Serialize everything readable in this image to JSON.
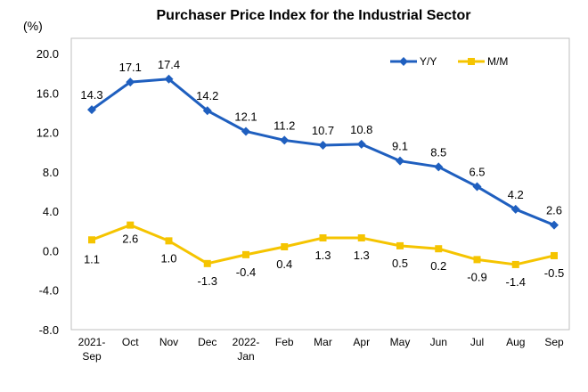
{
  "chart_data": {
    "type": "line",
    "title": "Purchaser Price Index for the Industrial Sector",
    "ylabel": "(%)",
    "ylim": [
      -8.0,
      20.0
    ],
    "yticks": [
      "20.0",
      "16.0",
      "12.0",
      "8.0",
      "4.0",
      "0.0",
      "-4.0",
      "-8.0"
    ],
    "ytick_values": [
      20,
      16,
      12,
      8,
      4,
      0,
      -4,
      -8
    ],
    "categories": [
      [
        "2021-",
        "Sep"
      ],
      [
        "Oct"
      ],
      [
        "Nov"
      ],
      [
        "Dec"
      ],
      [
        "2022-",
        "Jan"
      ],
      [
        "Feb"
      ],
      [
        "Mar"
      ],
      [
        "Apr"
      ],
      [
        "May"
      ],
      [
        "Jun"
      ],
      [
        "Jul"
      ],
      [
        "Aug"
      ],
      [
        "Sep"
      ]
    ],
    "legend_position": "top-right",
    "grid": false,
    "series": [
      {
        "name": "Y/Y",
        "color": "#1F5FBF",
        "marker": "diamond",
        "values": [
          14.3,
          17.1,
          17.4,
          14.2,
          12.1,
          11.2,
          10.7,
          10.8,
          9.1,
          8.5,
          6.5,
          4.2,
          2.6
        ],
        "labels": [
          "14.3",
          "17.1",
          "17.4",
          "14.2",
          "12.1",
          "11.2",
          "10.7",
          "10.8",
          "9.1",
          "8.5",
          "6.5",
          "4.2",
          "2.6"
        ]
      },
      {
        "name": "M/M",
        "color": "#F5C400",
        "marker": "square",
        "values": [
          1.1,
          2.6,
          1.0,
          -1.3,
          -0.4,
          0.4,
          1.3,
          1.3,
          0.5,
          0.2,
          -0.9,
          -1.4,
          -0.5
        ],
        "labels": [
          "1.1",
          "2.6",
          "1.0",
          "-1.3",
          "-0.4",
          "0.4",
          "1.3",
          "1.3",
          "0.5",
          "0.2",
          "-0.9",
          "-1.4",
          "-0.5"
        ]
      }
    ]
  }
}
